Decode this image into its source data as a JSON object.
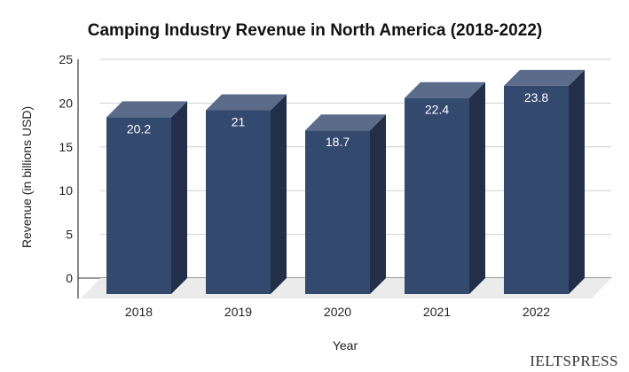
{
  "chart_data": {
    "type": "bar",
    "style": "3d-column",
    "title": "Camping Industry Revenue in North America (2018-2022)",
    "xlabel": "Year",
    "ylabel": "Revenue (in billions USD)",
    "categories": [
      "2018",
      "2019",
      "2020",
      "2021",
      "2022"
    ],
    "values": [
      20.2,
      21,
      18.7,
      22.4,
      23.8
    ],
    "data_labels": [
      "20.2",
      "21",
      "18.7",
      "22.4",
      "23.8"
    ],
    "ylim": [
      0,
      25
    ],
    "yticks": [
      "0",
      "5",
      "10",
      "15",
      "20",
      "25"
    ],
    "grid": true,
    "legend": "none",
    "colors": {
      "bar_front": "#33496e",
      "bar_side": "#232f48",
      "bar_top": "#5b6c8b",
      "floor": "#ebebeb",
      "grid": "#d0d0d0"
    }
  },
  "watermark": "IELTSPRESS"
}
